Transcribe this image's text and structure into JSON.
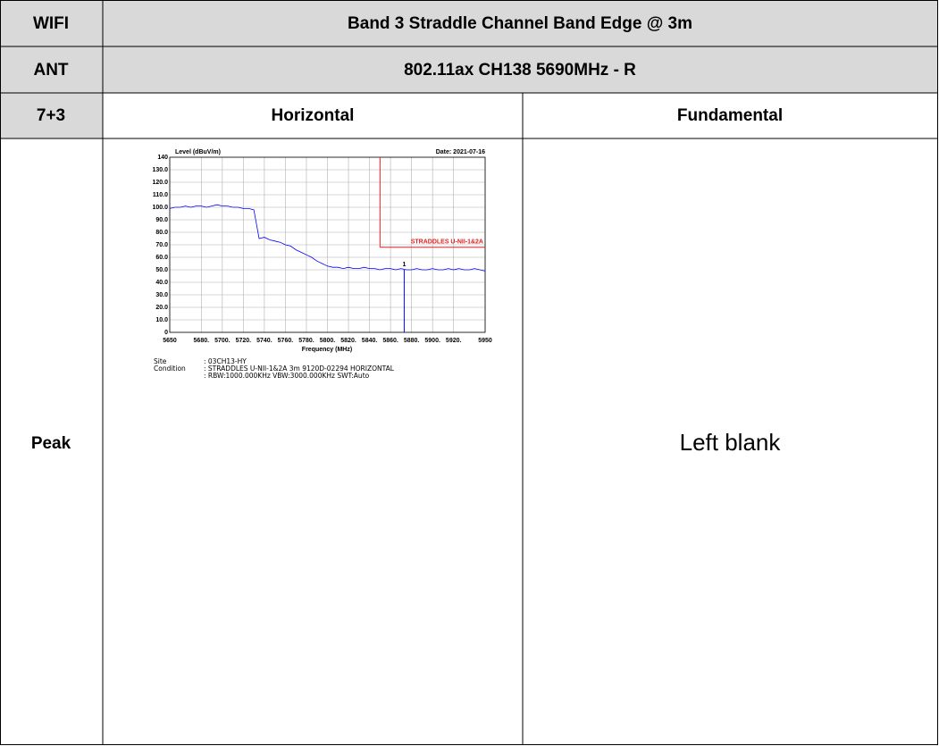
{
  "table": {
    "rows": [
      [
        "WIFI",
        "Band 3 Straddle Channel Band Edge @ 3m"
      ],
      [
        "ANT",
        "802.11ax CH138 5690MHz - R"
      ],
      [
        "7+3",
        "Horizontal",
        "Fundamental"
      ],
      [
        "Peak",
        "Left blank"
      ]
    ]
  },
  "chart_data": {
    "type": "line",
    "y_label": "Level (dBuV/m)",
    "x_label": "Frequency (MHz)",
    "date": "Date: 2021-07-16",
    "x": [
      5650,
      5655,
      5660,
      5665,
      5670,
      5675,
      5680,
      5685,
      5690,
      5695,
      5700,
      5705,
      5710,
      5715,
      5720,
      5725,
      5730,
      5735,
      5740,
      5745,
      5750,
      5755,
      5760,
      5765,
      5770,
      5775,
      5780,
      5785,
      5790,
      5795,
      5800,
      5805,
      5810,
      5815,
      5820,
      5825,
      5830,
      5835,
      5840,
      5845,
      5850,
      5855,
      5860,
      5865,
      5870,
      5875,
      5880,
      5885,
      5890,
      5895,
      5900,
      5905,
      5910,
      5915,
      5920,
      5925,
      5930,
      5935,
      5940,
      5945,
      5950
    ],
    "series": [
      {
        "color": "#0000ff",
        "values": [
          99,
          100,
          100,
          101,
          100,
          101,
          101,
          100,
          101,
          102,
          101,
          101,
          100,
          100,
          99,
          99,
          98,
          75,
          76,
          74,
          73,
          72,
          70,
          69,
          66,
          64,
          62,
          60,
          57,
          55,
          53,
          52,
          52,
          51,
          52,
          51,
          51,
          52,
          51,
          51,
          50,
          51,
          51,
          50,
          51,
          50,
          50,
          51,
          50,
          50,
          51,
          50,
          50,
          51,
          50,
          51,
          50,
          50,
          51,
          50,
          49
        ]
      }
    ],
    "xlim": [
      5650,
      5950
    ],
    "xticks": [
      5650,
      {
        "value": 5680,
        "label": "5680."
      },
      {
        "value": 5700,
        "label": "5700."
      },
      {
        "value": 5720,
        "label": "5720."
      },
      {
        "value": 5740,
        "label": "5740."
      },
      {
        "value": 5760,
        "label": "5760."
      },
      {
        "value": 5780,
        "label": "5780."
      },
      {
        "value": 5800,
        "label": "5800."
      },
      {
        "value": 5820,
        "label": "5820."
      },
      {
        "value": 5840,
        "label": "5840."
      },
      {
        "value": 5860,
        "label": "5860."
      },
      {
        "value": 5880,
        "label": "5880."
      },
      {
        "value": 5900,
        "label": "5900."
      },
      {
        "value": 5920,
        "label": "5920."
      },
      5950
    ],
    "ylim": [
      0,
      140
    ],
    "yticks": [
      0,
      {
        "value": 10,
        "label": "10.0"
      },
      {
        "value": 20,
        "label": "20.0"
      },
      {
        "value": 30,
        "label": "30.0"
      },
      {
        "value": 40,
        "label": "40.0"
      },
      {
        "value": 50,
        "label": "50.0"
      },
      {
        "value": 60,
        "label": "60.0"
      },
      {
        "value": 70,
        "label": "70.0"
      },
      {
        "value": 80,
        "label": "80.0"
      },
      {
        "value": 90,
        "label": "90.0"
      },
      {
        "value": 100,
        "label": "100.0"
      },
      {
        "value": 110,
        "label": "110.0"
      },
      {
        "value": 120,
        "label": "120.0"
      },
      {
        "value": 130,
        "label": "130.0"
      },
      140
    ],
    "grid": true,
    "limit": {
      "x": 5850,
      "y": 68,
      "label": "STRADDLES U-NII-1&2A",
      "color": "#e02020"
    },
    "marker": {
      "label": "1",
      "x": 5873,
      "y": 50,
      "color": "#0000ff"
    }
  },
  "chart_notes": [
    {
      "key": "Site",
      "value": ": 03CH13-HY"
    },
    {
      "key": "Condition",
      "value": ": STRADDLES U-NII-1&2A 3m 9120D-02294 HORIZONTAL"
    },
    {
      "value": ": RBW:1000.000KHz VBW:3000.000KHz SWT:Auto"
    }
  ]
}
